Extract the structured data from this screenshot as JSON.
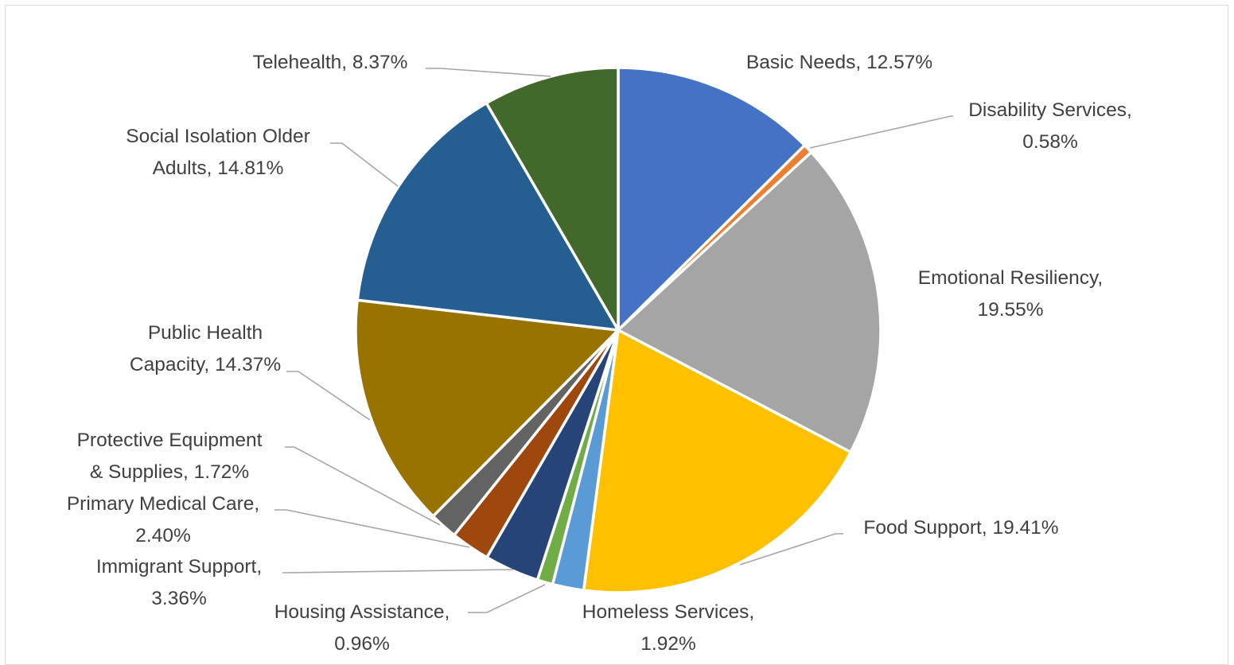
{
  "chart_data": {
    "type": "pie",
    "title": "",
    "start_angle_deg": 0,
    "direction": "clockwise",
    "slices": [
      {
        "category": "Basic Needs",
        "value": 12.57,
        "label_lines": [
          "Basic Needs, 12.57%"
        ],
        "color": "#4472C4"
      },
      {
        "category": "Disability Services",
        "value": 0.58,
        "label_lines": [
          "Disability Services,",
          "0.58%"
        ],
        "color": "#ED7D31"
      },
      {
        "category": "Emotional Resiliency",
        "value": 19.55,
        "label_lines": [
          "Emotional Resiliency,",
          "19.55%"
        ],
        "color": "#A5A5A5"
      },
      {
        "category": "Food Support",
        "value": 19.41,
        "label_lines": [
          "Food Support, 19.41%"
        ],
        "color": "#FFC000"
      },
      {
        "category": "Homeless Services",
        "value": 1.92,
        "label_lines": [
          "Homeless Services,",
          "1.92%"
        ],
        "color": "#5B9BD5"
      },
      {
        "category": "Housing Assistance",
        "value": 0.96,
        "label_lines": [
          "Housing Assistance,",
          "0.96%"
        ],
        "color": "#70AD47"
      },
      {
        "category": "Immigrant Support",
        "value": 3.36,
        "label_lines": [
          "Immigrant Support,",
          "3.36%"
        ],
        "color": "#264478"
      },
      {
        "category": "Primary Medical Care",
        "value": 2.4,
        "label_lines": [
          "Primary Medical Care,",
          "2.40%"
        ],
        "color": "#9E480E"
      },
      {
        "category": "Protective Equipment & Supplies",
        "value": 1.72,
        "label_lines": [
          "Protective Equipment",
          "& Supplies, 1.72%"
        ],
        "color": "#636363"
      },
      {
        "category": "Public Health Capacity",
        "value": 14.37,
        "label_lines": [
          "Public Health",
          "Capacity, 14.37%"
        ],
        "color": "#997300"
      },
      {
        "category": "Social Isolation Older Adults",
        "value": 14.81,
        "label_lines": [
          "Social Isolation Older",
          "Adults, 14.81%"
        ],
        "color": "#255E91"
      },
      {
        "category": "Telehealth",
        "value": 8.37,
        "label_lines": [
          "Telehealth, 8.37%"
        ],
        "color": "#43682B"
      }
    ]
  }
}
